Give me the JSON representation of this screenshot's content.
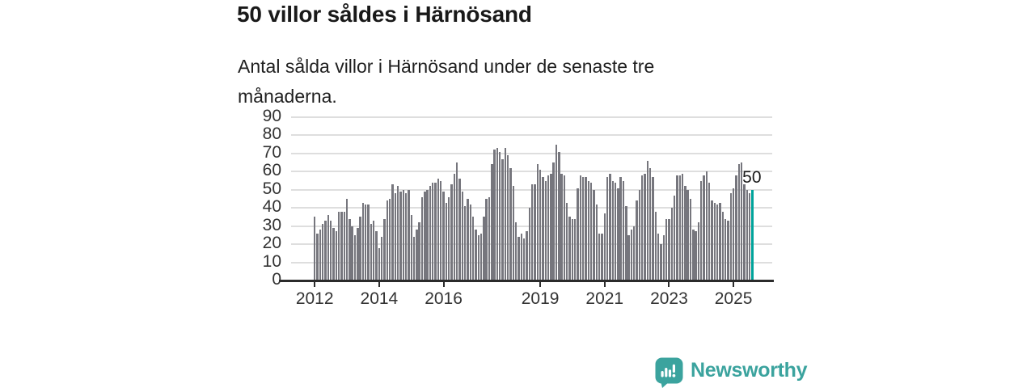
{
  "chart": {
    "title": "50 villor såldes i Härnösand",
    "subtitle": "Antal sålda villor i Härnösand under de senaste tre månaderna."
  },
  "branding": {
    "wordmark": "Newsworthy",
    "color": "#3ba39e"
  },
  "chart_data": {
    "type": "bar",
    "title": "50 villor såldes i Härnösand",
    "subtitle": "Antal sålda villor i Härnösand under de senaste tre månaderna.",
    "frequency": "monthly",
    "x_start": "2012-01",
    "x_end": "2025-08",
    "ylim": [
      0,
      90
    ],
    "y_ticks": [
      0,
      10,
      20,
      30,
      40,
      50,
      60,
      70,
      80,
      90
    ],
    "x_tick_labels": [
      "2012",
      "2014",
      "2016",
      "2019",
      "2021",
      "2023",
      "2025"
    ],
    "grid": "horizontal",
    "bar_color": "#76767d",
    "highlight_color": "#00a39b",
    "highlight_index": 163,
    "highlight_label": "50",
    "values": [
      35,
      26,
      28,
      31,
      33,
      36,
      33,
      29,
      27,
      38,
      38,
      38,
      45,
      34,
      30,
      25,
      29,
      35,
      43,
      42,
      42,
      31,
      33,
      27,
      18,
      24,
      34,
      44,
      45,
      53,
      48,
      52,
      49,
      50,
      48,
      50,
      36,
      24,
      28,
      32,
      46,
      49,
      50,
      52,
      54,
      54,
      56,
      55,
      49,
      43,
      46,
      53,
      59,
      65,
      56,
      49,
      41,
      45,
      42,
      35,
      28,
      25,
      26,
      35,
      45,
      46,
      64,
      72,
      73,
      71,
      67,
      73,
      69,
      62,
      52,
      32,
      24,
      26,
      23,
      27,
      40,
      53,
      53,
      64,
      61,
      57,
      55,
      58,
      59,
      65,
      75,
      71,
      59,
      58,
      43,
      35,
      34,
      34,
      51,
      58,
      57,
      57,
      55,
      54,
      50,
      42,
      26,
      26,
      37,
      57,
      59,
      55,
      54,
      51,
      57,
      55,
      41,
      25,
      28,
      30,
      44,
      50,
      58,
      59,
      66,
      62,
      57,
      38,
      26,
      20,
      25,
      34,
      34,
      40,
      47,
      58,
      58,
      59,
      52,
      50,
      45,
      28,
      27,
      32,
      55,
      58,
      60,
      54,
      44,
      43,
      42,
      43,
      38,
      34,
      33,
      48,
      51,
      58,
      64,
      65,
      53,
      50,
      48,
      50
    ]
  }
}
